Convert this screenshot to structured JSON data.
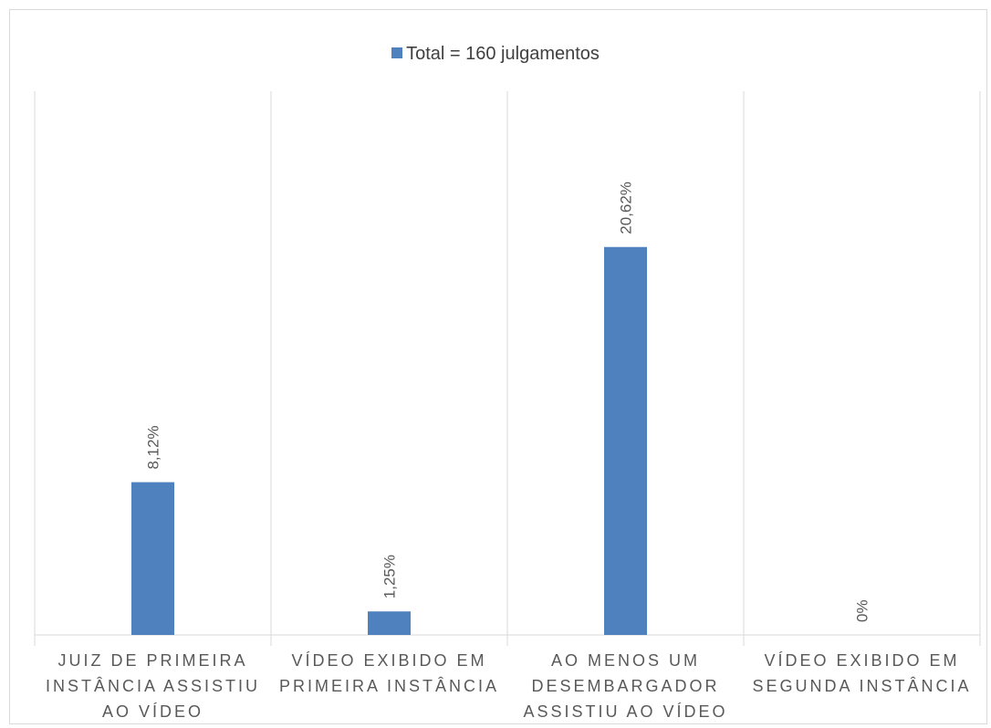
{
  "chart_data": {
    "type": "bar",
    "categories": [
      [
        "JUIZ DE PRIMEIRA",
        "INSTÂNCIA ASSISTIU",
        "AO VÍDEO"
      ],
      [
        "VÍDEO EXIBIDO EM",
        "PRIMEIRA INSTÂNCIA"
      ],
      [
        "AO MENOS UM",
        "DESEMBARGADOR",
        "ASSISTIU AO VÍDEO"
      ],
      [
        "VÍDEO EXIBIDO EM",
        "SEGUNDA INSTÂNCIA"
      ]
    ],
    "series": [
      {
        "name": "Total = 160 julgamentos",
        "color": "#4e81bd",
        "values": [
          8.12,
          1.25,
          20.62,
          0
        ],
        "labels": [
          "8,12%",
          "1,25%",
          "20,62%",
          "0%"
        ]
      }
    ],
    "ylim": [
      0,
      28.9
    ],
    "grid": "vertical separators between categories",
    "legend_position": "top"
  }
}
